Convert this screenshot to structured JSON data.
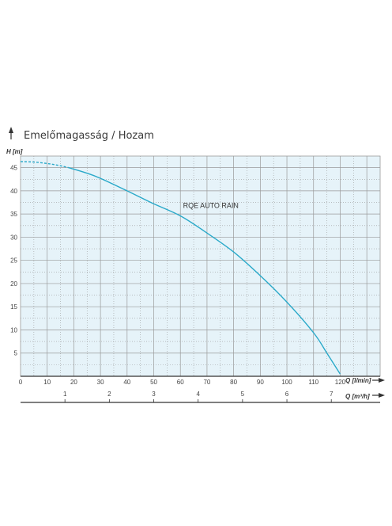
{
  "chart_data": {
    "type": "line",
    "title": "Emelőmagasság / Hozam",
    "ylabel": "H [m]",
    "xlabel": "Q [l/min]",
    "x2label": "Q [m³/h]",
    "ylim": [
      0,
      47.5
    ],
    "xlim": [
      0,
      135
    ],
    "y_ticks": [
      "5",
      "10",
      "15",
      "20",
      "25",
      "30",
      "35",
      "40",
      "45"
    ],
    "x_ticks": [
      "0",
      "10",
      "20",
      "30",
      "40",
      "50",
      "60",
      "70",
      "80",
      "90",
      "100",
      "110",
      "120"
    ],
    "x2_ticks": [
      "1",
      "2",
      "3",
      "4",
      "5",
      "6",
      "7"
    ],
    "grid": true,
    "series": [
      {
        "name": "RQE AUTO RAIN",
        "color": "#2aa9c9",
        "dashed_until_x": 18,
        "x": [
          0,
          5,
          10,
          15,
          18,
          25,
          30,
          40,
          50,
          60,
          70,
          80,
          90,
          100,
          110,
          115,
          120
        ],
        "y": [
          46.3,
          46.2,
          45.9,
          45.4,
          45.0,
          43.8,
          42.7,
          40.0,
          37.2,
          34.6,
          30.9,
          26.8,
          21.7,
          16.0,
          9.4,
          5.0,
          0.5
        ]
      }
    ],
    "colors": {
      "grid": "#9a9a9a",
      "plot_bg": "#e6f3f9",
      "axis": "#333333"
    }
  }
}
